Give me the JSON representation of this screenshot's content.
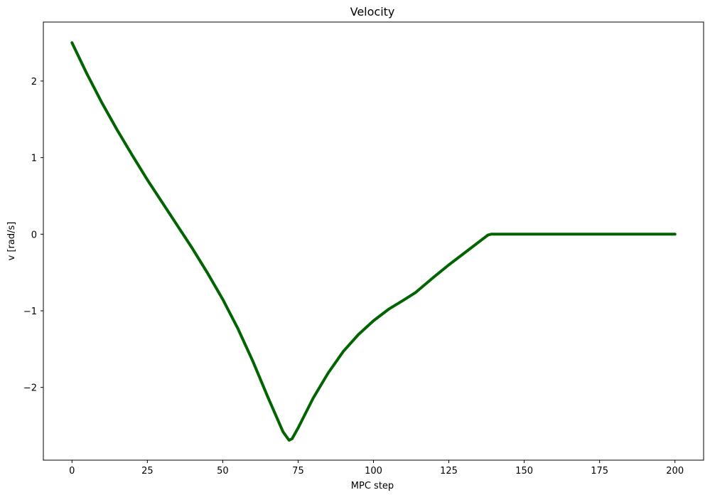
{
  "chart_data": {
    "type": "line",
    "title": "Velocity",
    "xlabel": "MPC step",
    "ylabel": "v [rad/s]",
    "xlim": [
      -9.5,
      209.5
    ],
    "ylim": [
      -2.95,
      2.77
    ],
    "xticks": [
      0,
      25,
      50,
      75,
      100,
      125,
      150,
      175,
      200
    ],
    "xtick_labels": [
      "0",
      "25",
      "50",
      "75",
      "100",
      "125",
      "150",
      "175",
      "200"
    ],
    "yticks": [
      -2,
      -1,
      0,
      1,
      2
    ],
    "ytick_labels": [
      "−2",
      "−1",
      "0",
      "1",
      "2"
    ],
    "grid": false,
    "legend": "none",
    "series": [
      {
        "color": "#006400",
        "x": [
          0,
          5,
          10,
          15,
          20,
          25,
          30,
          35,
          40,
          45,
          50,
          55,
          60,
          65,
          70,
          72,
          73,
          75,
          80,
          85,
          90,
          95,
          100,
          105,
          110,
          114,
          120,
          125,
          130,
          135,
          138,
          139,
          140,
          150,
          160,
          170,
          180,
          190,
          200
        ],
        "y": [
          2.5,
          2.09,
          1.71,
          1.36,
          1.03,
          0.71,
          0.41,
          0.11,
          -0.19,
          -0.51,
          -0.85,
          -1.23,
          -1.66,
          -2.13,
          -2.58,
          -2.69,
          -2.67,
          -2.53,
          -2.14,
          -1.81,
          -1.53,
          -1.31,
          -1.13,
          -0.98,
          -0.86,
          -0.76,
          -0.56,
          -0.4,
          -0.25,
          -0.1,
          -0.01,
          0.0,
          0.0,
          0.0,
          0.0,
          0.0,
          0.0,
          0.0,
          0.0
        ]
      }
    ]
  }
}
